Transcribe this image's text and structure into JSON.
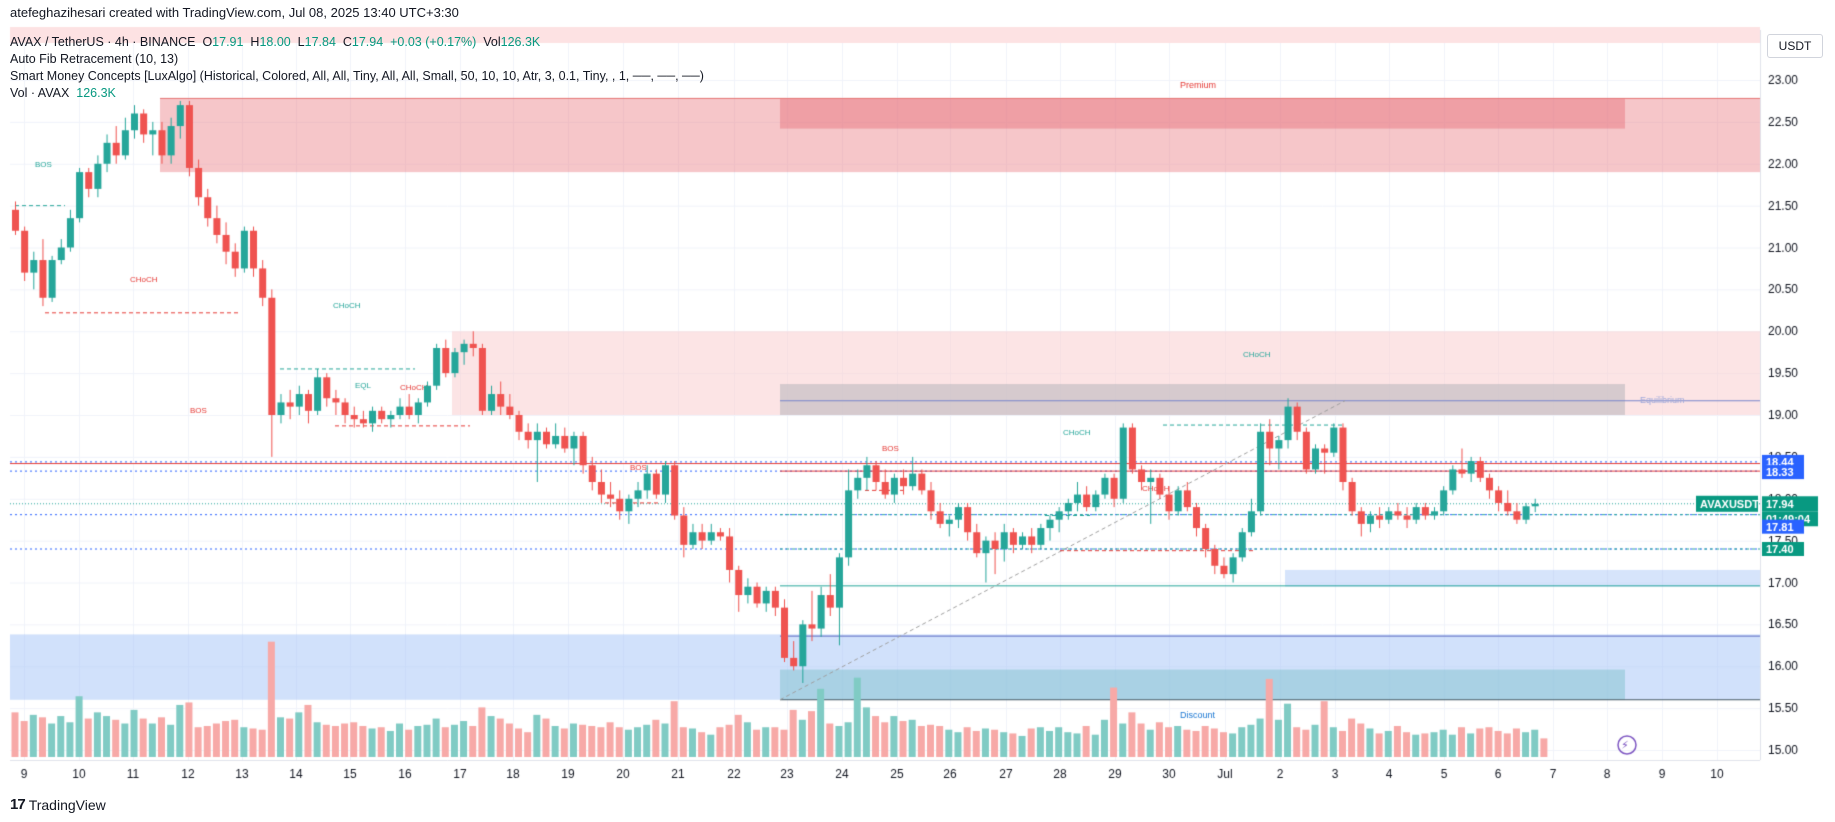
{
  "header": {
    "creator": "atefeghazihesari created with TradingView.com, Jul 08, 2025 13:40 UTC+3:30",
    "symbol_line": "AVAX / TetherUS · 4h · BINANCE",
    "open_label": "O",
    "open": "17.91",
    "high_label": "H",
    "high": "18.00",
    "low_label": "L",
    "low": "17.84",
    "close_label": "C",
    "close": "17.94",
    "change": "+0.03 (+0.17%)",
    "vol_label": "Vol",
    "vol": "126.3K",
    "indicator1": "Auto Fib Retracement (10, 13)",
    "indicator2": "Smart Money Concepts [LuxAlgo] (Historical, Colored, All, All, Tiny, All, All, Small, 50, 10, 10, Atr, 3, 0.1, Tiny, , 1, ──, ──, ──)",
    "vol_indicator": "Vol · AVAX",
    "vol_indicator_value": "126.3K"
  },
  "currency_button": "USDT",
  "footer_logo": "TradingView",
  "colors": {
    "up": "#26a69a",
    "down": "#ef5350",
    "up_vol": "#80cbc4",
    "down_vol": "#f7a9a7",
    "premium": "#f8c7c9",
    "discount": "#c8dcfb",
    "accent": "#2962ff"
  },
  "chart_data": {
    "type": "candlestick",
    "symbol": "AVAXUSDT",
    "timeframe": "4h",
    "y_axis_ticks": [
      23.0,
      22.5,
      22.0,
      21.5,
      21.0,
      20.5,
      20.0,
      19.5,
      19.0,
      18.5,
      18.0,
      17.5,
      17.0,
      16.5,
      16.0,
      15.5,
      15.0
    ],
    "ylim": [
      14.8,
      23.35
    ],
    "x_axis_ticks": [
      "9",
      "10",
      "11",
      "12",
      "13",
      "14",
      "15",
      "16",
      "17",
      "18",
      "19",
      "20",
      "21",
      "22",
      "23",
      "24",
      "25",
      "26",
      "27",
      "28",
      "29",
      "30",
      "Jul",
      "2",
      "3",
      "4",
      "5",
      "6",
      "7",
      "8",
      "9",
      "10"
    ],
    "price_labels": [
      {
        "text": "18.44",
        "value": 18.44,
        "color": "#2962ff"
      },
      {
        "text": "18.33",
        "value": 18.33,
        "color": "#2962ff"
      },
      {
        "text": "AVAXUSDT",
        "value": 17.94,
        "color": "#089981"
      },
      {
        "text": "17.94",
        "value": 17.94,
        "color": "#089981"
      },
      {
        "text": "01:49:04",
        "value": 17.94,
        "color": "#089981"
      },
      {
        "text": "17.81",
        "value": 17.81,
        "color": "#2962ff"
      },
      {
        "text": "17.40",
        "value": 17.4,
        "color": "#089981"
      }
    ],
    "zones": [
      {
        "name": "Premium",
        "label": "Premium",
        "low": 21.9,
        "high": 22.78
      },
      {
        "name": "Equilibrium",
        "label": "Equilibrium",
        "value": 19.17
      },
      {
        "name": "Discount",
        "label": "Discount",
        "low": 15.6,
        "high": 16.38
      }
    ],
    "structure_labels": [
      "BOS",
      "CHoCH",
      "CHoCH",
      "EQL",
      "CHoCH",
      "BOS",
      "BOS",
      "BOS",
      "CHoCH",
      "CHoCH",
      "CHoCH"
    ],
    "candles": [
      [
        21.45,
        21.55,
        21.15,
        21.2
      ],
      [
        21.2,
        21.25,
        20.6,
        20.7
      ],
      [
        20.7,
        20.95,
        20.5,
        20.85
      ],
      [
        20.85,
        21.1,
        20.3,
        20.4
      ],
      [
        20.4,
        20.9,
        20.35,
        20.85
      ],
      [
        20.85,
        21.1,
        20.8,
        21.0
      ],
      [
        21.0,
        21.45,
        20.95,
        21.35
      ],
      [
        21.35,
        21.95,
        21.3,
        21.9
      ],
      [
        21.9,
        21.95,
        21.6,
        21.7
      ],
      [
        21.7,
        22.1,
        21.6,
        22.0
      ],
      [
        22.0,
        22.35,
        21.9,
        22.25
      ],
      [
        22.25,
        22.45,
        22.0,
        22.1
      ],
      [
        22.1,
        22.55,
        22.05,
        22.4
      ],
      [
        22.4,
        22.7,
        22.3,
        22.6
      ],
      [
        22.6,
        22.65,
        22.25,
        22.35
      ],
      [
        22.35,
        22.5,
        22.1,
        22.4
      ],
      [
        22.4,
        22.5,
        22.0,
        22.1
      ],
      [
        22.1,
        22.55,
        22.0,
        22.45
      ],
      [
        22.45,
        22.75,
        22.3,
        22.7
      ],
      [
        22.7,
        22.75,
        21.85,
        21.95
      ],
      [
        21.95,
        22.05,
        21.5,
        21.6
      ],
      [
        21.6,
        21.7,
        21.25,
        21.35
      ],
      [
        21.35,
        21.5,
        21.05,
        21.15
      ],
      [
        21.15,
        21.3,
        20.8,
        20.95
      ],
      [
        20.95,
        21.05,
        20.65,
        20.75
      ],
      [
        20.75,
        21.25,
        20.7,
        21.2
      ],
      [
        21.2,
        21.25,
        20.65,
        20.75
      ],
      [
        20.75,
        20.85,
        20.3,
        20.4
      ],
      [
        20.4,
        20.5,
        18.5,
        19.0
      ],
      [
        19.0,
        19.25,
        18.9,
        19.15
      ],
      [
        19.15,
        19.3,
        18.95,
        19.1
      ],
      [
        19.1,
        19.35,
        19.0,
        19.25
      ],
      [
        19.25,
        19.3,
        18.9,
        19.05
      ],
      [
        19.05,
        19.55,
        19.0,
        19.45
      ],
      [
        19.45,
        19.5,
        19.1,
        19.2
      ],
      [
        19.2,
        19.3,
        19.0,
        19.15
      ],
      [
        19.15,
        19.2,
        18.9,
        19.0
      ],
      [
        19.0,
        19.1,
        18.85,
        18.95
      ],
      [
        18.95,
        19.05,
        18.85,
        18.9
      ],
      [
        18.9,
        19.1,
        18.8,
        19.05
      ],
      [
        19.05,
        19.1,
        18.9,
        18.95
      ],
      [
        18.95,
        19.05,
        18.85,
        19.0
      ],
      [
        19.0,
        19.2,
        18.95,
        19.1
      ],
      [
        19.1,
        19.25,
        18.95,
        19.0
      ],
      [
        19.0,
        19.2,
        18.9,
        19.15
      ],
      [
        19.15,
        19.4,
        19.1,
        19.35
      ],
      [
        19.35,
        19.85,
        19.3,
        19.8
      ],
      [
        19.8,
        19.9,
        19.45,
        19.5
      ],
      [
        19.5,
        19.8,
        19.45,
        19.75
      ],
      [
        19.75,
        19.9,
        19.6,
        19.85
      ],
      [
        19.85,
        20.0,
        19.7,
        19.8
      ],
      [
        19.8,
        19.85,
        19.0,
        19.05
      ],
      [
        19.05,
        19.35,
        19.0,
        19.25
      ],
      [
        19.25,
        19.4,
        19.0,
        19.1
      ],
      [
        19.1,
        19.25,
        18.95,
        19.0
      ],
      [
        19.0,
        19.05,
        18.7,
        18.8
      ],
      [
        18.8,
        18.9,
        18.6,
        18.7
      ],
      [
        18.7,
        18.9,
        18.2,
        18.8
      ],
      [
        18.8,
        18.85,
        18.6,
        18.65
      ],
      [
        18.65,
        18.9,
        18.6,
        18.75
      ],
      [
        18.75,
        18.85,
        18.55,
        18.6
      ],
      [
        18.6,
        18.8,
        18.4,
        18.75
      ],
      [
        18.75,
        18.8,
        18.3,
        18.4
      ],
      [
        18.4,
        18.5,
        18.1,
        18.2
      ],
      [
        18.2,
        18.35,
        17.95,
        18.05
      ],
      [
        18.05,
        18.2,
        17.9,
        18.0
      ],
      [
        18.0,
        18.1,
        17.75,
        17.85
      ],
      [
        17.85,
        18.05,
        17.7,
        18.0
      ],
      [
        18.0,
        18.2,
        17.9,
        18.1
      ],
      [
        18.1,
        18.4,
        18.0,
        18.3
      ],
      [
        18.3,
        18.35,
        18.0,
        18.05
      ],
      [
        18.05,
        18.45,
        17.95,
        18.4
      ],
      [
        18.4,
        18.45,
        17.75,
        17.8
      ],
      [
        17.8,
        17.9,
        17.3,
        17.45
      ],
      [
        17.45,
        17.7,
        17.4,
        17.6
      ],
      [
        17.6,
        17.7,
        17.4,
        17.5
      ],
      [
        17.5,
        17.7,
        17.45,
        17.6
      ],
      [
        17.6,
        17.65,
        17.5,
        17.55
      ],
      [
        17.55,
        17.65,
        17.0,
        17.15
      ],
      [
        17.15,
        17.2,
        16.65,
        16.85
      ],
      [
        16.85,
        17.05,
        16.75,
        16.95
      ],
      [
        16.95,
        17.0,
        16.7,
        16.75
      ],
      [
        16.75,
        16.95,
        16.65,
        16.9
      ],
      [
        16.9,
        16.95,
        16.6,
        16.7
      ],
      [
        16.7,
        16.8,
        16.05,
        16.1
      ],
      [
        16.1,
        16.3,
        15.95,
        16.0
      ],
      [
        16.0,
        16.55,
        15.8,
        16.5
      ],
      [
        16.5,
        16.9,
        16.3,
        16.45
      ],
      [
        16.45,
        16.95,
        16.35,
        16.85
      ],
      [
        16.85,
        17.1,
        16.6,
        16.7
      ],
      [
        16.7,
        17.35,
        16.25,
        17.3
      ],
      [
        17.3,
        18.35,
        17.2,
        18.1
      ],
      [
        18.1,
        18.35,
        18.0,
        18.25
      ],
      [
        18.25,
        18.5,
        18.1,
        18.4
      ],
      [
        18.4,
        18.45,
        18.1,
        18.2
      ],
      [
        18.2,
        18.35,
        18.0,
        18.05
      ],
      [
        18.05,
        18.3,
        17.95,
        18.25
      ],
      [
        18.25,
        18.35,
        18.05,
        18.15
      ],
      [
        18.15,
        18.5,
        18.1,
        18.3
      ],
      [
        18.3,
        18.35,
        18.05,
        18.1
      ],
      [
        18.1,
        18.2,
        17.75,
        17.85
      ],
      [
        17.85,
        17.95,
        17.65,
        17.7
      ],
      [
        17.7,
        17.8,
        17.55,
        17.75
      ],
      [
        17.75,
        17.95,
        17.65,
        17.9
      ],
      [
        17.9,
        17.95,
        17.5,
        17.6
      ],
      [
        17.6,
        17.7,
        17.3,
        17.35
      ],
      [
        17.35,
        17.55,
        17.0,
        17.5
      ],
      [
        17.5,
        17.6,
        17.1,
        17.4
      ],
      [
        17.4,
        17.7,
        17.25,
        17.6
      ],
      [
        17.6,
        17.65,
        17.35,
        17.45
      ],
      [
        17.45,
        17.6,
        17.4,
        17.55
      ],
      [
        17.55,
        17.65,
        17.35,
        17.45
      ],
      [
        17.45,
        17.7,
        17.4,
        17.65
      ],
      [
        17.65,
        17.8,
        17.5,
        17.75
      ],
      [
        17.75,
        17.9,
        17.6,
        17.85
      ],
      [
        17.85,
        18.0,
        17.75,
        17.95
      ],
      [
        17.95,
        18.2,
        17.85,
        18.05
      ],
      [
        18.05,
        18.15,
        17.85,
        17.9
      ],
      [
        17.9,
        18.1,
        17.85,
        18.05
      ],
      [
        18.05,
        18.3,
        18.0,
        18.25
      ],
      [
        18.25,
        18.3,
        17.9,
        18.0
      ],
      [
        18.0,
        18.9,
        17.95,
        18.85
      ],
      [
        18.85,
        18.9,
        18.3,
        18.35
      ],
      [
        18.35,
        18.4,
        18.1,
        18.2
      ],
      [
        18.2,
        18.35,
        17.7,
        18.25
      ],
      [
        18.25,
        18.3,
        18.0,
        18.05
      ],
      [
        18.05,
        18.15,
        17.75,
        17.85
      ],
      [
        17.85,
        18.15,
        17.8,
        18.1
      ],
      [
        18.1,
        18.2,
        17.85,
        17.9
      ],
      [
        17.9,
        17.95,
        17.55,
        17.65
      ],
      [
        17.65,
        17.7,
        17.3,
        17.4
      ],
      [
        17.4,
        17.45,
        17.1,
        17.2
      ],
      [
        17.2,
        17.3,
        17.05,
        17.1
      ],
      [
        17.1,
        17.35,
        17.0,
        17.3
      ],
      [
        17.3,
        17.65,
        17.25,
        17.6
      ],
      [
        17.6,
        18.0,
        17.55,
        17.85
      ],
      [
        17.85,
        18.9,
        17.8,
        18.8
      ],
      [
        18.8,
        18.95,
        18.4,
        18.6
      ],
      [
        18.6,
        18.75,
        18.35,
        18.7
      ],
      [
        18.7,
        19.2,
        18.6,
        19.1
      ],
      [
        19.1,
        19.15,
        18.7,
        18.8
      ],
      [
        18.8,
        18.85,
        18.3,
        18.35
      ],
      [
        18.35,
        18.65,
        18.3,
        18.6
      ],
      [
        18.6,
        18.65,
        18.3,
        18.55
      ],
      [
        18.55,
        18.9,
        18.5,
        18.85
      ],
      [
        18.85,
        18.9,
        18.1,
        18.2
      ],
      [
        18.2,
        18.25,
        17.8,
        17.85
      ],
      [
        17.85,
        17.9,
        17.55,
        17.7
      ],
      [
        17.7,
        17.85,
        17.6,
        17.8
      ],
      [
        17.8,
        17.9,
        17.65,
        17.75
      ],
      [
        17.75,
        17.9,
        17.7,
        17.85
      ],
      [
        17.85,
        17.95,
        17.75,
        17.8
      ],
      [
        17.8,
        17.9,
        17.65,
        17.75
      ],
      [
        17.75,
        17.95,
        17.7,
        17.9
      ],
      [
        17.9,
        17.95,
        17.75,
        17.8
      ],
      [
        17.8,
        17.9,
        17.75,
        17.85
      ],
      [
        17.85,
        18.15,
        17.8,
        18.1
      ],
      [
        18.1,
        18.4,
        18.05,
        18.35
      ],
      [
        18.35,
        18.6,
        18.25,
        18.3
      ],
      [
        18.3,
        18.5,
        18.2,
        18.45
      ],
      [
        18.45,
        18.5,
        18.2,
        18.25
      ],
      [
        18.25,
        18.3,
        18.0,
        18.1
      ],
      [
        18.1,
        18.15,
        17.85,
        17.95
      ],
      [
        17.95,
        18.1,
        17.8,
        17.85
      ],
      [
        17.85,
        17.95,
        17.7,
        17.75
      ],
      [
        17.75,
        17.95,
        17.7,
        17.91
      ],
      [
        17.91,
        18.0,
        17.84,
        17.94
      ]
    ],
    "volumes": [
      36,
      29,
      34,
      32,
      27,
      33,
      28,
      49,
      31,
      36,
      33,
      30,
      27,
      38,
      31,
      27,
      32,
      26,
      42,
      44,
      24,
      25,
      27,
      29,
      30,
      24,
      23,
      22,
      93,
      32,
      31,
      36,
      42,
      28,
      26,
      25,
      27,
      28,
      25,
      23,
      24,
      21,
      27,
      22,
      25,
      26,
      31,
      24,
      26,
      29,
      25,
      40,
      33,
      31,
      27,
      23,
      20,
      34,
      31,
      25,
      23,
      27,
      26,
      25,
      24,
      28,
      24,
      22,
      24,
      26,
      30,
      27,
      45,
      24,
      23,
      20,
      18,
      24,
      26,
      34,
      28,
      22,
      24,
      24,
      22,
      38,
      30,
      37,
      55,
      27,
      25,
      28,
      64,
      40,
      33,
      28,
      33,
      29,
      30,
      25,
      26,
      25,
      22,
      20,
      24,
      21,
      23,
      22,
      20,
      19,
      17,
      23,
      24,
      21,
      24,
      20,
      19,
      25,
      18,
      30,
      56,
      27,
      36,
      27,
      22,
      28,
      24,
      25,
      22,
      21,
      25,
      23,
      20,
      19,
      24,
      26,
      31,
      63,
      30,
      43,
      24,
      22,
      26,
      45,
      24,
      21,
      31,
      27,
      23,
      19,
      21,
      25,
      20,
      18,
      19,
      20,
      22,
      18,
      24,
      19,
      23,
      24,
      21,
      19,
      23,
      20,
      22,
      15
    ]
  }
}
